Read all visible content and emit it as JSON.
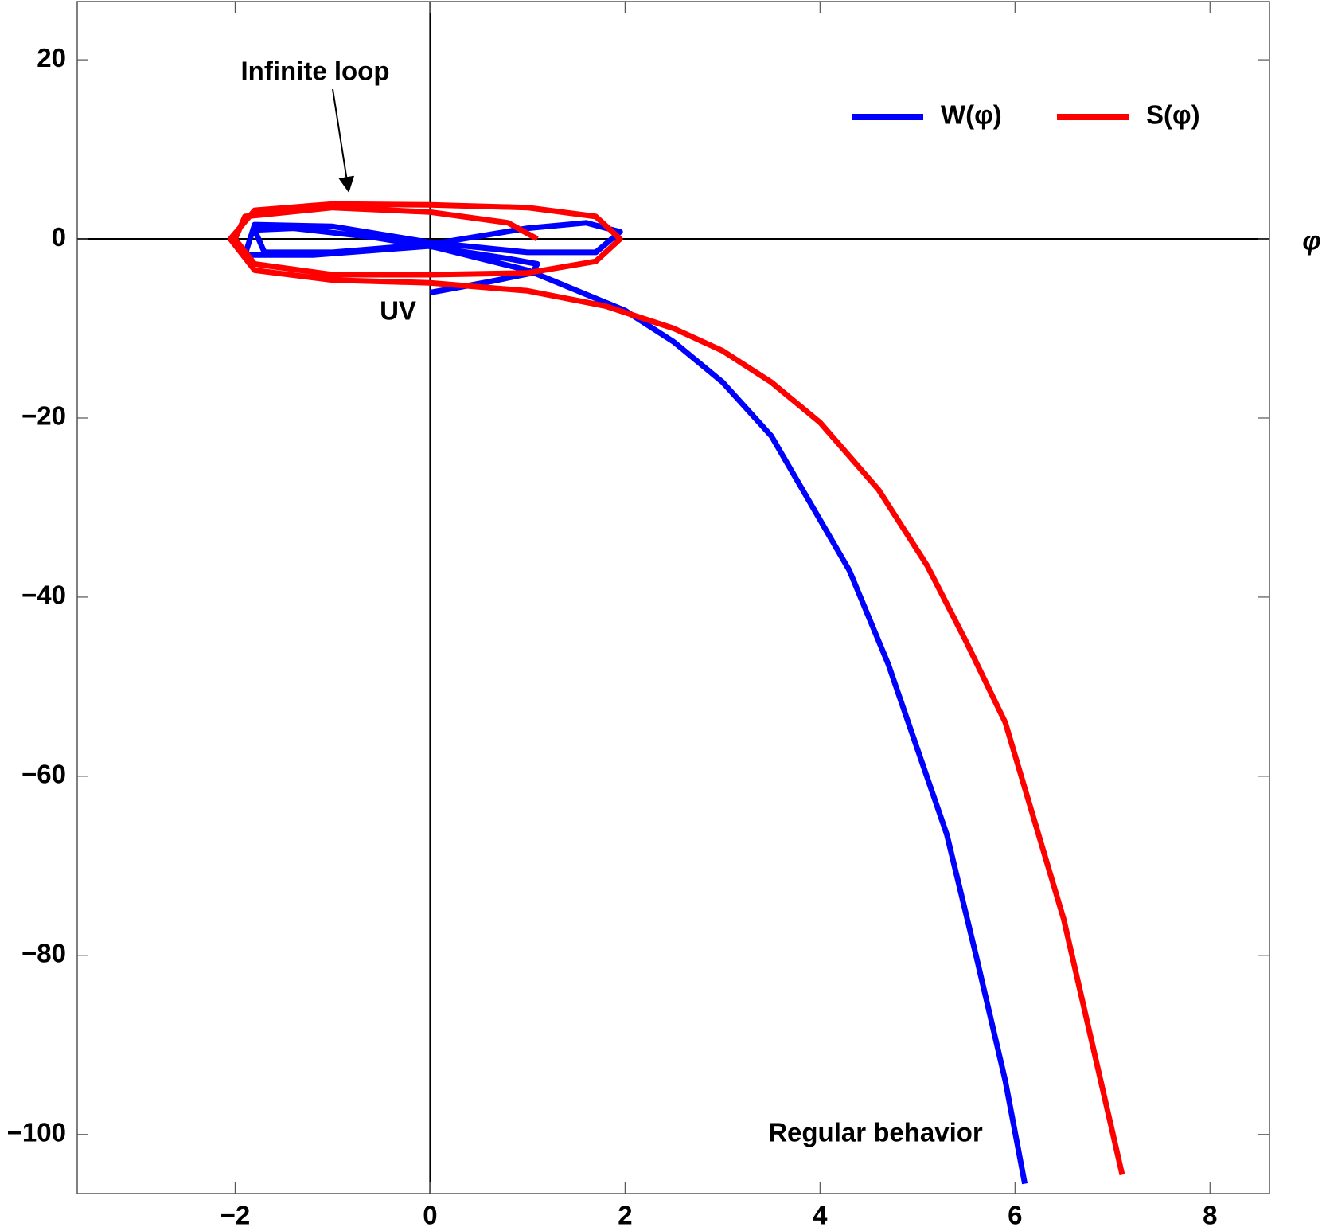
{
  "chart_data": {
    "type": "line",
    "x_label": "φ",
    "xlim": [
      -3.62,
      8.61
    ],
    "ylim": [
      -106.6,
      26.5
    ],
    "xticks": [
      {
        "value": -2,
        "label": "−2"
      },
      0,
      2,
      4,
      6,
      8
    ],
    "yticks": [
      {
        "value": -100,
        "label": "−100"
      },
      {
        "value": -80,
        "label": "−80"
      },
      {
        "value": -60,
        "label": "−60"
      },
      {
        "value": -40,
        "label": "−40"
      },
      {
        "value": -20,
        "label": "−20"
      },
      0,
      20
    ],
    "legend": "top-right",
    "annotations": [
      "Infinite loop",
      "UV",
      "Regular behavior"
    ],
    "series": [
      {
        "name": "W(φ)",
        "color": "#0000ff",
        "x": [
          0,
          0.6,
          1.05,
          1.1,
          0.8,
          0.2,
          -0.6,
          -1.4,
          -1.8,
          -1.7,
          -1.0,
          0,
          1.0,
          1.6,
          1.95,
          1.7,
          1.0,
          0,
          -1.0,
          -1.8,
          -1.9,
          -1.2,
          0,
          1.0,
          2.0,
          2.5,
          3.0,
          3.5,
          3.9,
          4.3,
          4.7,
          5.0,
          5.3,
          5.6,
          5.9,
          6.1
        ],
        "values": [
          -6,
          -4.8,
          -3.8,
          -2.8,
          -2.2,
          -1.2,
          0.2,
          1.2,
          1.0,
          -1.5,
          -1.5,
          -0.6,
          1.2,
          1.8,
          0.8,
          -1.5,
          -1.5,
          -0.4,
          1.4,
          1.6,
          -1.8,
          -1.8,
          -0.8,
          -3.5,
          -8,
          -11.5,
          -16,
          -22,
          -29.5,
          -37,
          -47.5,
          -57,
          -66.5,
          -80,
          -94,
          -105.5
        ]
      },
      {
        "name": "S(φ)",
        "color": "#ff0000",
        "x": [
          1.1,
          0.8,
          0,
          -1,
          -1.9,
          -2,
          -1.8,
          -1,
          0,
          1,
          1.7,
          1.95,
          1.7,
          1,
          0,
          -1,
          -1.8,
          -2.05,
          -1.8,
          -1,
          0,
          1,
          1.8,
          2.5,
          3.0,
          3.5,
          4.0,
          4.6,
          5.1,
          5.5,
          5.9,
          6.5,
          7.1
        ],
        "values": [
          0,
          1.8,
          3,
          3.5,
          2.5,
          0,
          -2.8,
          -4,
          -4,
          -3.8,
          -2.5,
          0,
          2.5,
          3.5,
          3.8,
          3.9,
          3.2,
          0,
          -3.5,
          -4.6,
          -4.9,
          -5.8,
          -7.5,
          -10,
          -12.5,
          -16,
          -20.5,
          -28,
          -36.5,
          -45,
          -54,
          -76,
          -104.5
        ]
      }
    ]
  }
}
